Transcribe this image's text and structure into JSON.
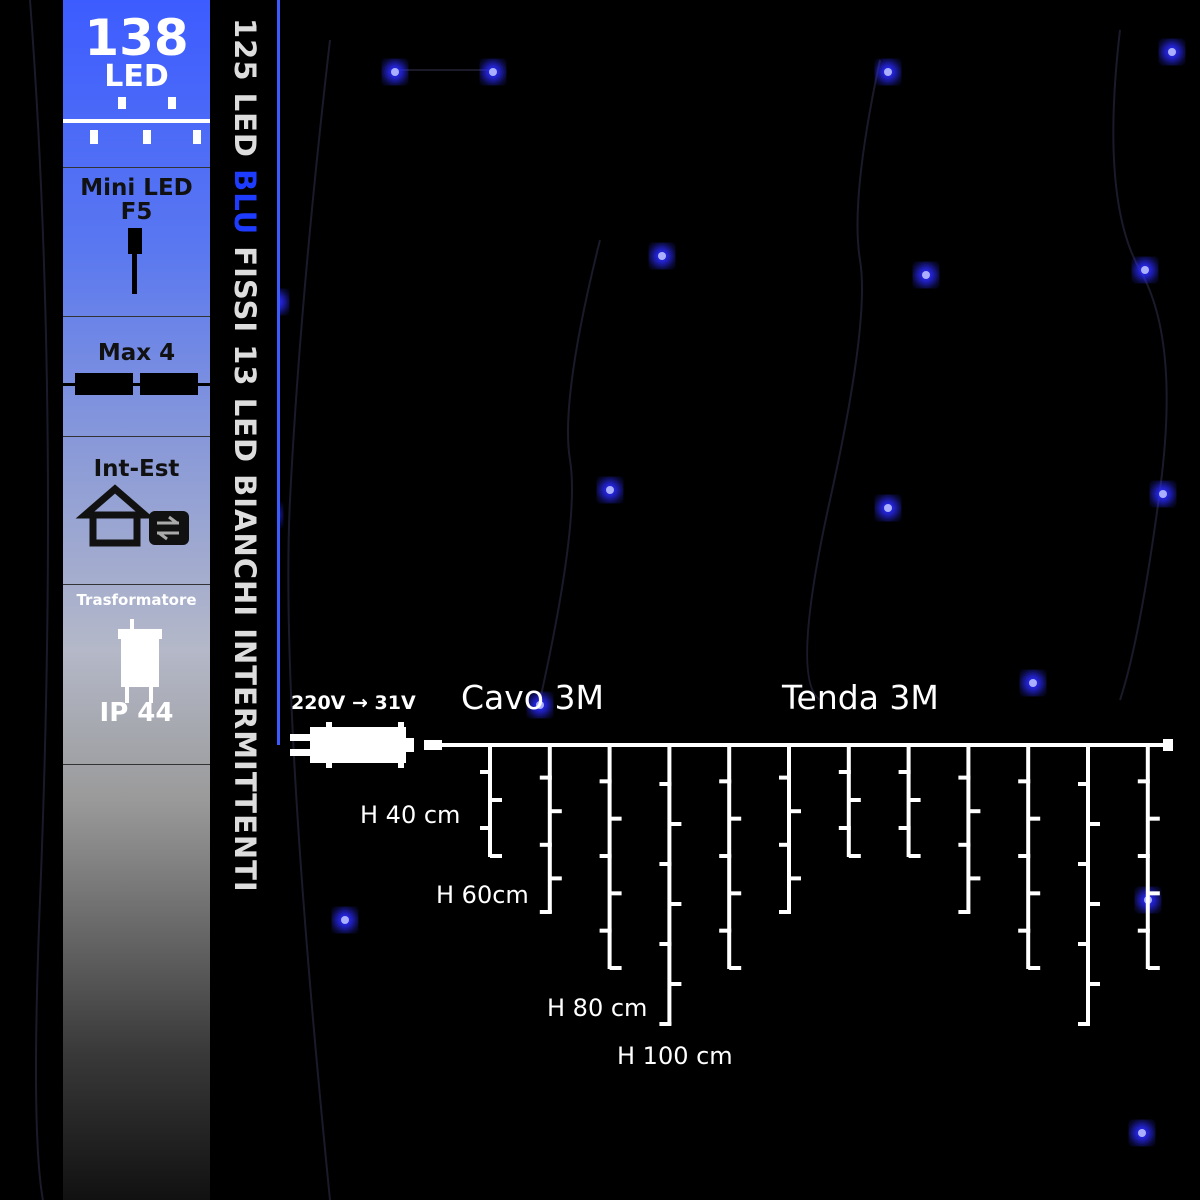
{
  "panel": {
    "led_count": "138",
    "led_unit": "LED",
    "led_type": "Mini LED",
    "led_size": "F5",
    "max_connect": "Max 4",
    "usage": "Int-Est",
    "transformer": "Trasformatore",
    "ip_rating": "IP 44",
    "accent_color": "#3d5cff"
  },
  "title": {
    "part1": "125 LED ",
    "part2": "BLU",
    "part3": " FISSI 13 LED BIANCHI INTERMITTENTI",
    "highlight_color": "#1e3cff"
  },
  "diagram": {
    "voltage": "220V → 31V",
    "cable": "Cavo 3M",
    "curtain": "Tenda 3M",
    "labels": [
      "H 40 cm",
      "H 60cm",
      "H 80 cm",
      "H 100 cm"
    ],
    "drop_heights_cm": [
      40,
      60,
      80,
      100,
      80,
      60,
      40,
      40,
      60,
      80,
      100,
      80
    ]
  }
}
